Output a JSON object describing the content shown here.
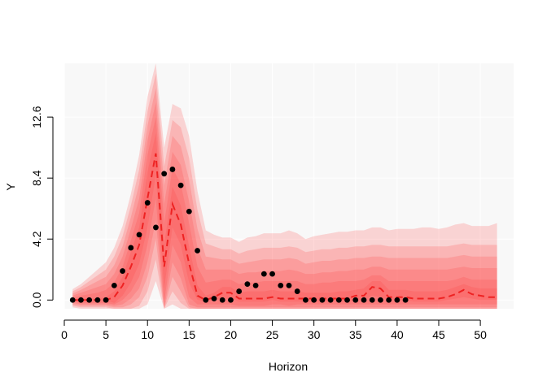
{
  "chart_data": {
    "type": "line",
    "title": "",
    "xlabel": "Horizon",
    "ylabel": "Y",
    "xlim": [
      0,
      54
    ],
    "ylim": [
      -0.6,
      16.3
    ],
    "x_ticks": [
      0,
      5,
      10,
      15,
      20,
      25,
      30,
      35,
      40,
      45,
      50
    ],
    "y_ticks": [
      0.0,
      4.2,
      8.4,
      12.6
    ],
    "y_tick_labels": [
      "0.0",
      "4.2",
      "8.4",
      "12.6"
    ],
    "grid": true,
    "legend": "none",
    "colors": {
      "panel_background": "#f8f8f8",
      "band": "#ff4040",
      "median_line": "#ee2222",
      "points": "#000000",
      "grid": "#ffffff"
    },
    "observed": {
      "x": [
        1,
        2,
        3,
        4,
        5,
        6,
        7,
        8,
        9,
        10,
        11,
        12,
        13,
        14,
        15,
        16,
        17,
        18,
        19,
        20,
        21,
        22,
        23,
        24,
        25,
        26,
        27,
        28,
        29,
        30,
        31,
        32,
        33,
        34,
        35,
        36,
        37,
        38,
        39,
        40,
        41
      ],
      "y": [
        0,
        0,
        0,
        0,
        0,
        1.0,
        2.0,
        3.6,
        4.5,
        6.7,
        5.0,
        8.7,
        9.0,
        7.9,
        6.1,
        3.4,
        0,
        0.1,
        0,
        0,
        0.6,
        1.1,
        1.0,
        1.8,
        1.8,
        1.0,
        1.0,
        0.6,
        0,
        0,
        0,
        0,
        0,
        0,
        0,
        0,
        0,
        0,
        0,
        0,
        0
      ]
    },
    "forecast": {
      "x": [
        1,
        2,
        3,
        4,
        5,
        6,
        7,
        8,
        9,
        10,
        11,
        12,
        13,
        14,
        15,
        16,
        17,
        18,
        19,
        20,
        21,
        22,
        23,
        24,
        25,
        26,
        27,
        28,
        29,
        30,
        31,
        32,
        33,
        34,
        35,
        36,
        37,
        38,
        39,
        40,
        41,
        42,
        43,
        44,
        45,
        46,
        47,
        48,
        49,
        50,
        51,
        52
      ],
      "median": [
        0,
        0,
        0,
        0,
        0,
        0.2,
        1.0,
        2.3,
        3.8,
        7.0,
        10.1,
        2.3,
        6.6,
        5.2,
        2.5,
        0.3,
        0,
        0.2,
        0.5,
        0.5,
        0.1,
        0.1,
        0.1,
        0.1,
        0.2,
        0.1,
        0.1,
        0.1,
        0.1,
        0.1,
        0.1,
        0.1,
        0.1,
        0.1,
        0.3,
        0.3,
        0.9,
        0.8,
        0.2,
        0.2,
        0.2,
        0.1,
        0.1,
        0.1,
        0.1,
        0.2,
        0.4,
        0.7,
        0.4,
        0.3,
        0.2,
        0.2
      ],
      "bands": [
        {
          "level": 1,
          "lower": [
            0,
            0,
            0,
            0,
            0,
            -0.2,
            0.3,
            1.2,
            2.5,
            5.0,
            8.6,
            0.8,
            5.0,
            3.8,
            1.2,
            0,
            -0.1,
            0,
            0.1,
            0.1,
            -0.1,
            -0.1,
            -0.1,
            -0.1,
            0,
            -0.1,
            -0.1,
            -0.1,
            -0.1,
            -0.1,
            -0.1,
            -0.1,
            -0.1,
            -0.1,
            0,
            0,
            0.3,
            0.2,
            0,
            0,
            0,
            -0.1,
            -0.1,
            -0.1,
            -0.1,
            0,
            0.1,
            0.2,
            0.1,
            0,
            0,
            0
          ],
          "upper": [
            0.05,
            0.1,
            0.1,
            0.1,
            0.2,
            0.6,
            1.6,
            3.3,
            5.0,
            8.8,
            11.5,
            3.8,
            7.8,
            6.5,
            3.7,
            1.0,
            0.3,
            0.5,
            0.9,
            0.9,
            0.5,
            0.6,
            0.6,
            0.6,
            0.7,
            0.6,
            0.6,
            0.6,
            0.5,
            0.5,
            0.5,
            0.5,
            0.6,
            0.6,
            0.7,
            0.8,
            1.3,
            1.3,
            0.7,
            0.7,
            0.7,
            0.6,
            0.6,
            0.6,
            0.6,
            0.7,
            0.9,
            1.1,
            0.9,
            0.8,
            0.8,
            0.8
          ]
        },
        {
          "level": 2,
          "lower": [
            -0.1,
            -0.2,
            -0.2,
            -0.2,
            -0.2,
            -0.3,
            0,
            0.6,
            1.6,
            3.8,
            7.0,
            -0.1,
            3.8,
            2.6,
            0.2,
            -0.3,
            -0.3,
            -0.3,
            -0.3,
            -0.3,
            -0.4,
            -0.4,
            -0.4,
            -0.4,
            -0.3,
            -0.3,
            -0.4,
            -0.3,
            -0.3,
            -0.3,
            -0.3,
            -0.3,
            -0.3,
            -0.3,
            -0.3,
            -0.3,
            -0.3,
            -0.3,
            -0.3,
            -0.3,
            -0.3,
            -0.3,
            -0.3,
            -0.3,
            -0.3,
            -0.3,
            -0.3,
            -0.3,
            -0.3,
            -0.3,
            -0.3,
            -0.3
          ],
          "upper": [
            0.15,
            0.3,
            0.4,
            0.5,
            0.7,
            1.2,
            2.3,
            4.1,
            6.0,
            10.0,
            12.6,
            5.3,
            9.1,
            8.0,
            5.3,
            2.3,
            1.2,
            1.3,
            1.4,
            1.4,
            1.1,
            1.2,
            1.2,
            1.3,
            1.3,
            1.3,
            1.3,
            1.3,
            1.1,
            1.1,
            1.2,
            1.2,
            1.3,
            1.3,
            1.3,
            1.4,
            1.7,
            1.7,
            1.3,
            1.3,
            1.3,
            1.3,
            1.3,
            1.3,
            1.3,
            1.3,
            1.4,
            1.6,
            1.4,
            1.4,
            1.4,
            1.4
          ]
        },
        {
          "level": 3,
          "lower": [
            -0.2,
            -0.3,
            -0.3,
            -0.3,
            -0.3,
            -0.4,
            -0.3,
            0.1,
            0.8,
            2.6,
            5.5,
            -0.5,
            2.6,
            1.5,
            -0.3,
            -0.5,
            -0.5,
            -0.5,
            -0.5,
            -0.5,
            -0.5,
            -0.5,
            -0.5,
            -0.5,
            -0.5,
            -0.5,
            -0.5,
            -0.5,
            -0.5,
            -0.5,
            -0.5,
            -0.5,
            -0.5,
            -0.5,
            -0.5,
            -0.5,
            -0.5,
            -0.5,
            -0.5,
            -0.5,
            -0.5,
            -0.5,
            -0.5,
            -0.5,
            -0.5,
            -0.5,
            -0.5,
            -0.5,
            -0.5,
            -0.5,
            -0.5,
            -0.5
          ],
          "upper": [
            0.3,
            0.5,
            0.7,
            0.9,
            1.1,
            1.8,
            3.0,
            4.9,
            7.0,
            11.0,
            13.6,
            6.6,
            10.2,
            9.3,
            6.8,
            3.6,
            2.1,
            2.1,
            2.1,
            2.1,
            1.8,
            1.9,
            1.9,
            2.0,
            2.0,
            2.0,
            2.1,
            2.0,
            1.8,
            1.8,
            1.9,
            1.9,
            2.0,
            2.0,
            2.1,
            2.1,
            2.3,
            2.3,
            2.1,
            2.1,
            2.1,
            2.1,
            2.1,
            2.1,
            2.1,
            2.1,
            2.2,
            2.3,
            2.2,
            2.2,
            2.2,
            2.2
          ]
        },
        {
          "level": 4,
          "lower": [
            -0.3,
            -0.4,
            -0.4,
            -0.4,
            -0.4,
            -0.5,
            -0.5,
            -0.3,
            0.2,
            1.6,
            4.2,
            -0.6,
            1.6,
            0.6,
            -0.5,
            -0.6,
            -0.6,
            -0.6,
            -0.6,
            -0.6,
            -0.6,
            -0.6,
            -0.6,
            -0.6,
            -0.6,
            -0.6,
            -0.6,
            -0.6,
            -0.6,
            -0.6,
            -0.6,
            -0.6,
            -0.6,
            -0.6,
            -0.6,
            -0.6,
            -0.6,
            -0.6,
            -0.6,
            -0.6,
            -0.6,
            -0.6,
            -0.6,
            -0.6,
            -0.6,
            -0.6,
            -0.6,
            -0.6,
            -0.6,
            -0.6,
            -0.6,
            -0.6
          ],
          "upper": [
            0.45,
            0.7,
            1.0,
            1.3,
            1.6,
            2.4,
            3.7,
            5.7,
            8.0,
            12.0,
            14.6,
            7.9,
            11.3,
            10.6,
            8.3,
            4.9,
            3.0,
            2.9,
            2.8,
            2.8,
            2.5,
            2.6,
            2.7,
            2.8,
            2.8,
            2.8,
            2.9,
            2.8,
            2.5,
            2.6,
            2.7,
            2.7,
            2.8,
            2.8,
            2.9,
            2.9,
            3.0,
            3.0,
            2.9,
            2.9,
            2.9,
            2.9,
            2.9,
            2.9,
            2.9,
            2.9,
            3.0,
            3.1,
            3.0,
            3.0,
            3.0,
            3.0
          ]
        },
        {
          "level": 5,
          "lower": [
            -0.4,
            -0.5,
            -0.5,
            -0.5,
            -0.5,
            -0.6,
            -0.6,
            -0.6,
            -0.4,
            0.6,
            2.8,
            -0.6,
            0.6,
            -0.2,
            -0.6,
            -0.6,
            -0.6,
            -0.6,
            -0.6,
            -0.6,
            -0.6,
            -0.6,
            -0.6,
            -0.6,
            -0.6,
            -0.6,
            -0.6,
            -0.6,
            -0.6,
            -0.6,
            -0.6,
            -0.6,
            -0.6,
            -0.6,
            -0.6,
            -0.6,
            -0.6,
            -0.6,
            -0.6,
            -0.6,
            -0.6,
            -0.6,
            -0.6,
            -0.6,
            -0.6,
            -0.6,
            -0.6,
            -0.6,
            -0.6,
            -0.6,
            -0.6,
            -0.6
          ],
          "upper": [
            0.6,
            0.9,
            1.3,
            1.7,
            2.1,
            3.0,
            4.4,
            6.5,
            9.0,
            13.0,
            15.6,
            9.2,
            12.4,
            11.9,
            9.8,
            6.2,
            3.9,
            3.7,
            3.5,
            3.5,
            3.2,
            3.4,
            3.5,
            3.6,
            3.6,
            3.6,
            3.7,
            3.6,
            3.3,
            3.4,
            3.5,
            3.5,
            3.6,
            3.6,
            3.7,
            3.7,
            3.8,
            3.8,
            3.7,
            3.7,
            3.7,
            3.7,
            3.7,
            3.7,
            3.7,
            3.7,
            3.8,
            3.9,
            3.8,
            3.8,
            3.8,
            3.8
          ]
        },
        {
          "level": 6,
          "lower": [
            -0.5,
            -0.6,
            -0.6,
            -0.6,
            -0.6,
            -0.6,
            -0.6,
            -0.6,
            -0.6,
            -0.3,
            1.3,
            -0.6,
            -0.3,
            -0.6,
            -0.6,
            -0.6,
            -0.6,
            -0.6,
            -0.6,
            -0.6,
            -0.6,
            -0.6,
            -0.6,
            -0.6,
            -0.6,
            -0.6,
            -0.6,
            -0.6,
            -0.6,
            -0.6,
            -0.6,
            -0.6,
            -0.6,
            -0.6,
            -0.6,
            -0.6,
            -0.6,
            -0.6,
            -0.6,
            -0.6,
            -0.6,
            -0.6,
            -0.6,
            -0.6,
            -0.6,
            -0.6,
            -0.6,
            -0.6,
            -0.6,
            -0.6,
            -0.6,
            -0.6
          ],
          "upper": [
            0.75,
            1.1,
            1.6,
            2.1,
            2.6,
            3.6,
            5.1,
            7.3,
            10.0,
            14.0,
            16.3,
            10.5,
            13.5,
            13.2,
            11.3,
            7.5,
            4.8,
            4.5,
            4.3,
            4.3,
            4.0,
            4.3,
            4.4,
            4.6,
            4.6,
            4.6,
            4.8,
            4.6,
            4.2,
            4.4,
            4.5,
            4.6,
            4.7,
            4.7,
            4.8,
            4.8,
            5.0,
            5.0,
            4.8,
            4.9,
            4.9,
            4.9,
            5.0,
            5.0,
            4.9,
            5.0,
            5.2,
            5.3,
            5.1,
            5.1,
            5.1,
            5.3
          ]
        }
      ]
    }
  }
}
